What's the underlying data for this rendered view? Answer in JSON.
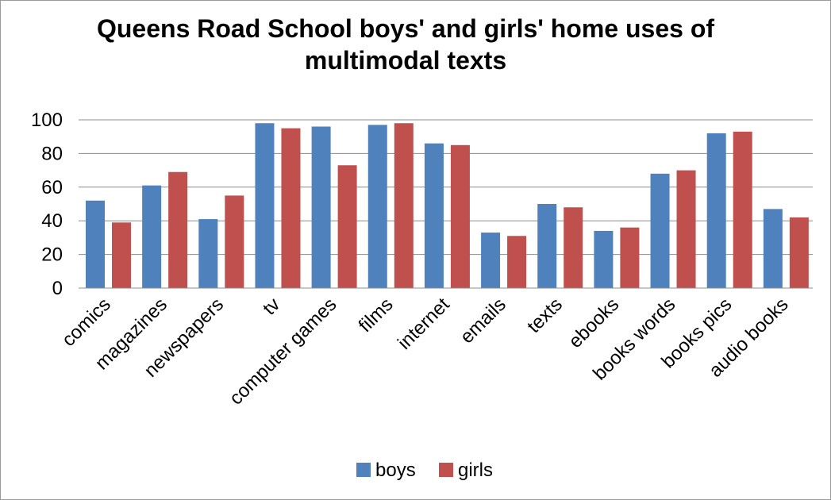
{
  "chart_data": {
    "type": "bar",
    "title": "Queens Road School boys' and girls' home uses of multimodal texts",
    "title_lines": [
      "Queens Road School boys' and girls' home uses of",
      "multimodal texts"
    ],
    "categories": [
      "comics",
      "magazines",
      "newspapers",
      "tv",
      "computer games",
      "films",
      "internet",
      "emails",
      "texts",
      "ebooks",
      "books words",
      "books pics",
      "audio books"
    ],
    "series": [
      {
        "name": "boys",
        "color": "#4F81BD",
        "values": [
          52,
          61,
          41,
          98,
          96,
          97,
          86,
          33,
          50,
          34,
          68,
          92,
          47
        ]
      },
      {
        "name": "girls",
        "color": "#C0504D",
        "values": [
          39,
          69,
          55,
          95,
          73,
          98,
          85,
          31,
          48,
          36,
          70,
          93,
          42
        ]
      }
    ],
    "ylim": [
      0,
      100
    ],
    "yticks": [
      0,
      20,
      40,
      60,
      80,
      100
    ],
    "grid": true,
    "legend_position": "bottom",
    "xlabel": "",
    "ylabel": ""
  }
}
